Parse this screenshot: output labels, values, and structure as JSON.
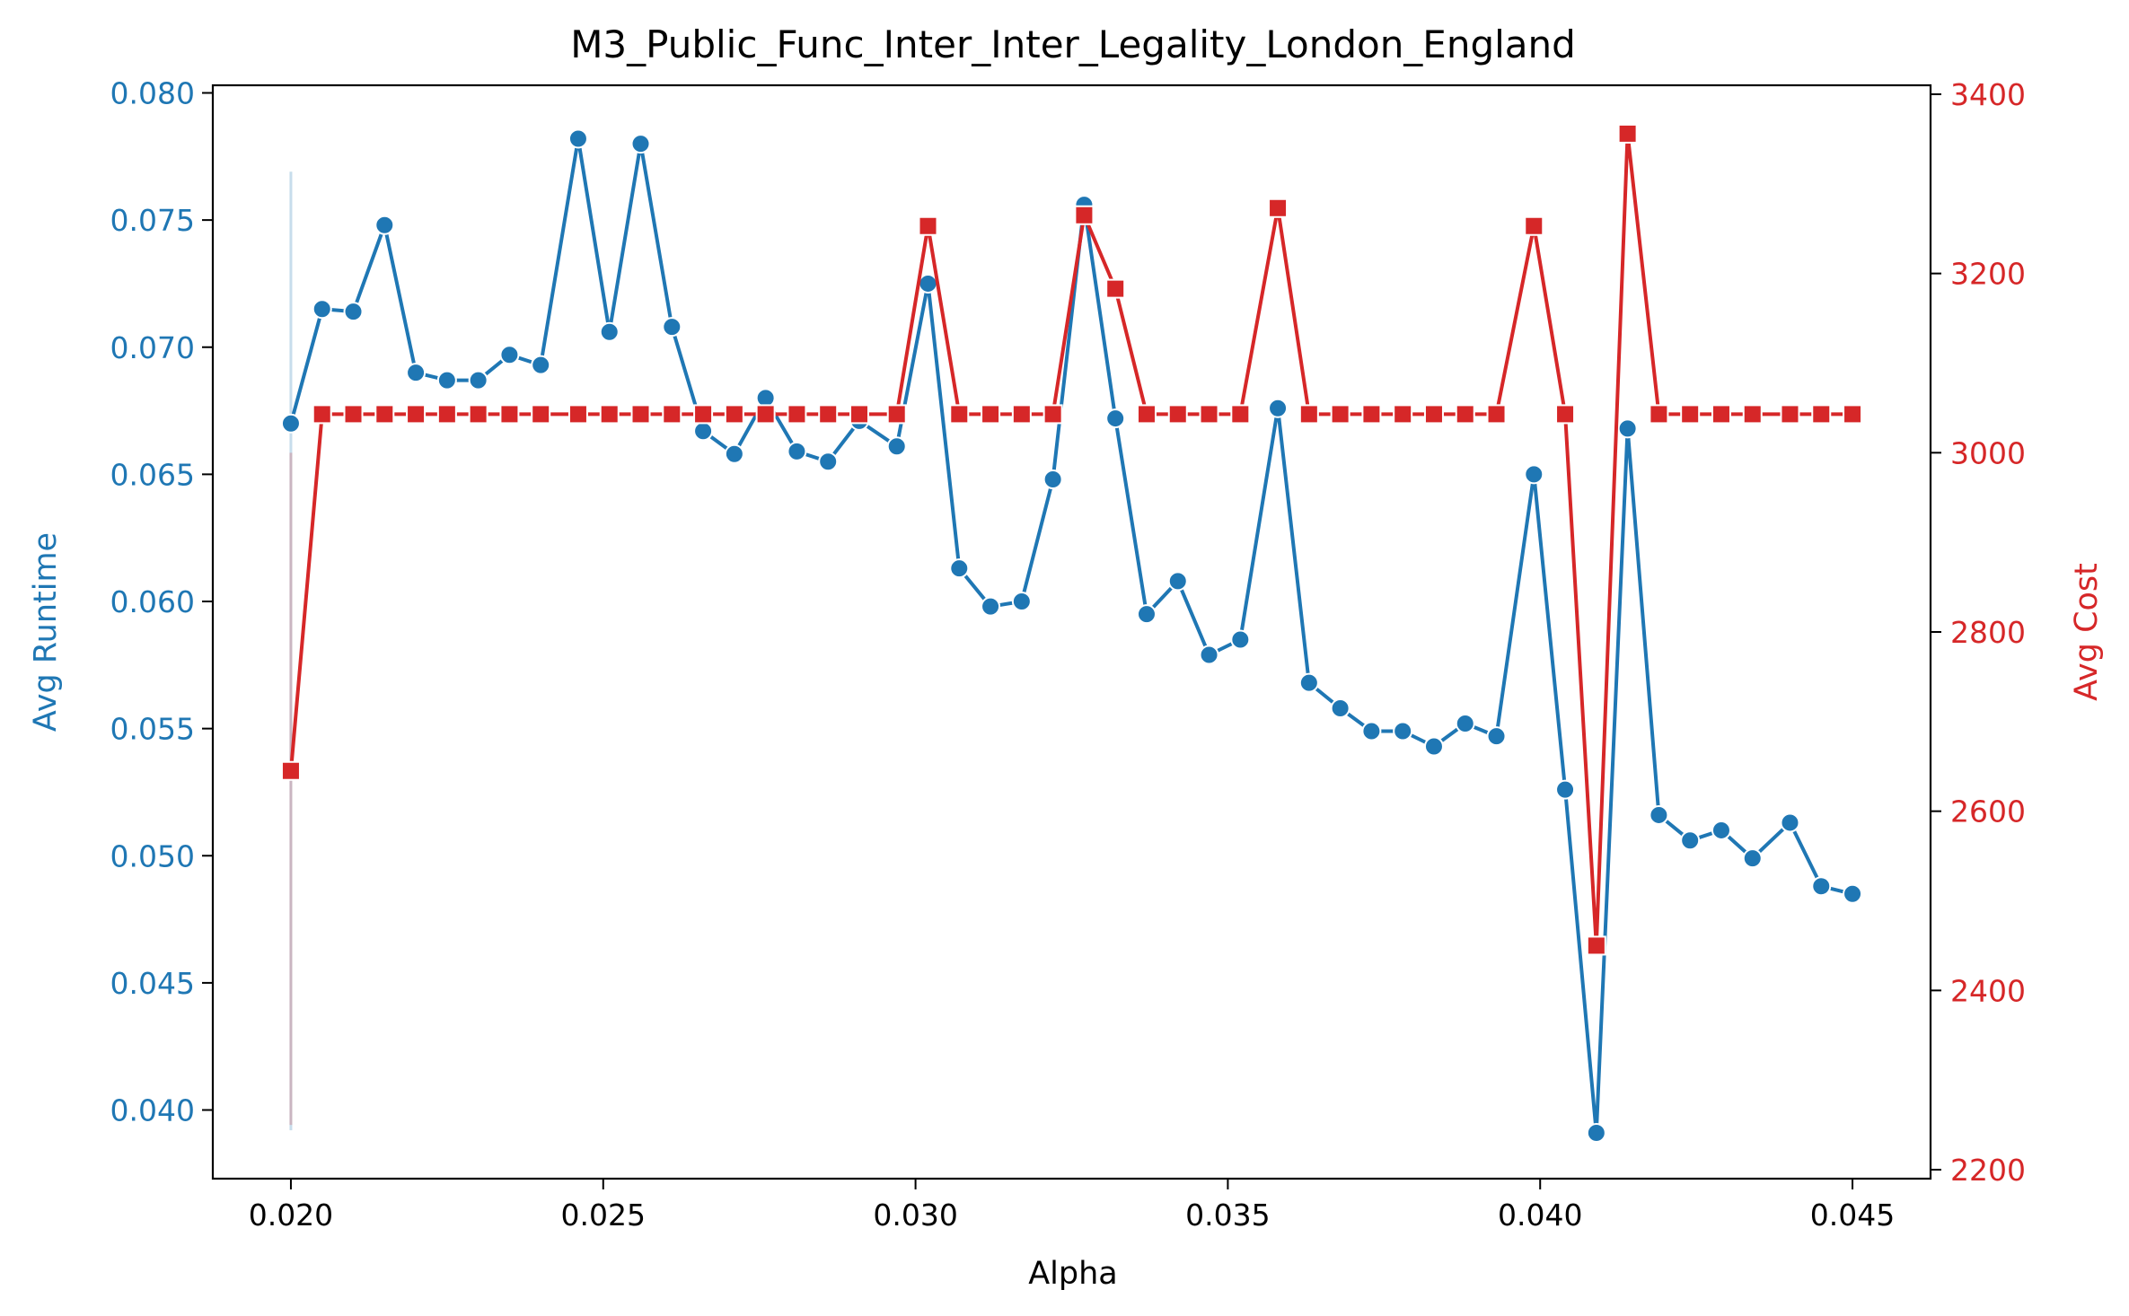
{
  "chart_data": {
    "type": "line",
    "title": "M3_Public_Func_Inter_Inter_Legality_London_England",
    "xlabel": "Alpha",
    "ylabel_left": "Avg Runtime",
    "ylabel_right": "Avg Cost",
    "xlim": [
      0.01875,
      0.04625
    ],
    "ylim_left": [
      0.0373,
      0.0803
    ],
    "ylim_right": [
      2190,
      3410
    ],
    "x_ticks": [
      "0.020",
      "0.025",
      "0.030",
      "0.035",
      "0.040",
      "0.045"
    ],
    "y_left_ticks": [
      "0.040",
      "0.045",
      "0.050",
      "0.055",
      "0.060",
      "0.065",
      "0.070",
      "0.075",
      "0.080"
    ],
    "y_right_ticks": [
      "2200",
      "2400",
      "2600",
      "2800",
      "3000",
      "3200",
      "3400"
    ],
    "colors": {
      "runtime": "#1f77b4",
      "cost": "#d62728"
    },
    "grid": false,
    "error_bar": {
      "x": 0.02,
      "runtime_range": [
        0.0392,
        0.0769
      ],
      "cost_range": [
        2250,
        3000
      ]
    },
    "x": [
      0.02,
      0.0205,
      0.021,
      0.0215,
      0.022,
      0.0225,
      0.023,
      0.0235,
      0.024,
      0.0246,
      0.0251,
      0.0256,
      0.0261,
      0.0266,
      0.0271,
      0.0276,
      0.0281,
      0.0286,
      0.0291,
      0.0297,
      0.0302,
      0.0307,
      0.0312,
      0.0317,
      0.0322,
      0.0327,
      0.0332,
      0.0337,
      0.0342,
      0.0347,
      0.0352,
      0.0358,
      0.0363,
      0.0368,
      0.0373,
      0.0378,
      0.0383,
      0.0388,
      0.0393,
      0.0399,
      0.0404,
      0.0409,
      0.0414,
      0.0419,
      0.0424,
      0.0429,
      0.0434,
      0.044,
      0.0445,
      0.045
    ],
    "series": [
      {
        "name": "Avg Runtime",
        "axis": "left",
        "marker": "circle",
        "values": [
          0.067,
          0.0715,
          0.0714,
          0.0748,
          0.069,
          0.0687,
          0.0687,
          0.0697,
          0.0693,
          0.0782,
          0.0706,
          0.078,
          0.0708,
          0.0667,
          0.0658,
          0.068,
          0.0659,
          0.0655,
          0.0671,
          0.0661,
          0.0725,
          0.0613,
          0.0598,
          0.06,
          0.0648,
          0.0756,
          0.0672,
          0.0595,
          0.0608,
          0.0579,
          0.0585,
          0.0676,
          0.0568,
          0.0558,
          0.0549,
          0.0549,
          0.0543,
          0.0552,
          0.0547,
          0.065,
          0.0526,
          0.0391,
          0.0668,
          0.0516,
          0.0506,
          0.051,
          0.0499,
          0.0513,
          0.0488,
          0.0485
        ]
      },
      {
        "name": "Avg Cost",
        "axis": "right",
        "marker": "square",
        "values": [
          2645,
          3043,
          3043,
          3043,
          3043,
          3043,
          3043,
          3043,
          3043,
          3043,
          3043,
          3043,
          3043,
          3043,
          3043,
          3043,
          3043,
          3043,
          3043,
          3043,
          3253,
          3043,
          3043,
          3043,
          3043,
          3265,
          3183,
          3043,
          3043,
          3043,
          3043,
          3273,
          3043,
          3043,
          3043,
          3043,
          3043,
          3043,
          3043,
          3253,
          3043,
          2450,
          3356,
          3043,
          3043,
          3043,
          3043,
          3043,
          3043,
          3043
        ]
      }
    ]
  }
}
